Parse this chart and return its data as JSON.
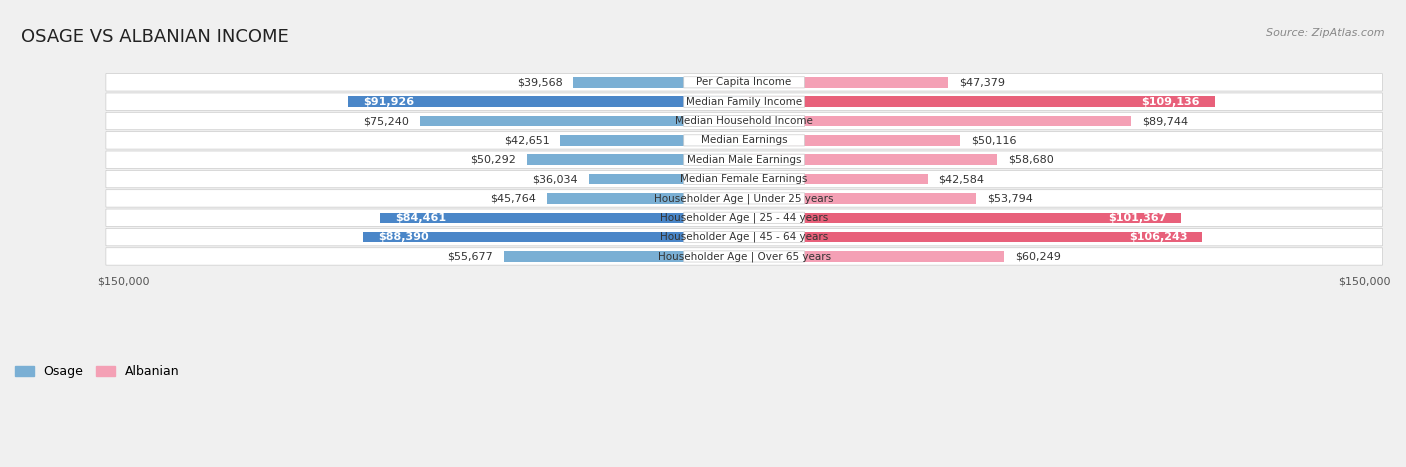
{
  "title": "OSAGE VS ALBANIAN INCOME",
  "source": "Source: ZipAtlas.com",
  "categories": [
    "Per Capita Income",
    "Median Family Income",
    "Median Household Income",
    "Median Earnings",
    "Median Male Earnings",
    "Median Female Earnings",
    "Householder Age | Under 25 years",
    "Householder Age | 25 - 44 years",
    "Householder Age | 45 - 64 years",
    "Householder Age | Over 65 years"
  ],
  "osage_values": [
    39568,
    91926,
    75240,
    42651,
    50292,
    36034,
    45764,
    84461,
    88390,
    55677
  ],
  "albanian_values": [
    47379,
    109136,
    89744,
    50116,
    58680,
    42584,
    53794,
    101367,
    106243,
    60249
  ],
  "osage_color": "#7aafd4",
  "osage_color_dark": "#4a86c8",
  "albanian_color": "#f4a0b5",
  "albanian_color_dark": "#e8607a",
  "max_value": 150000,
  "background_color": "#f0f0f0",
  "row_bg_color": "#ffffff",
  "row_border_color": "#cccccc",
  "label_bg_color": "#ffffff",
  "label_border_color": "#cccccc",
  "title_fontsize": 13,
  "source_fontsize": 8,
  "value_fontsize": 8,
  "label_fontsize": 7.5,
  "axis_label_fontsize": 8,
  "legend_fontsize": 9
}
